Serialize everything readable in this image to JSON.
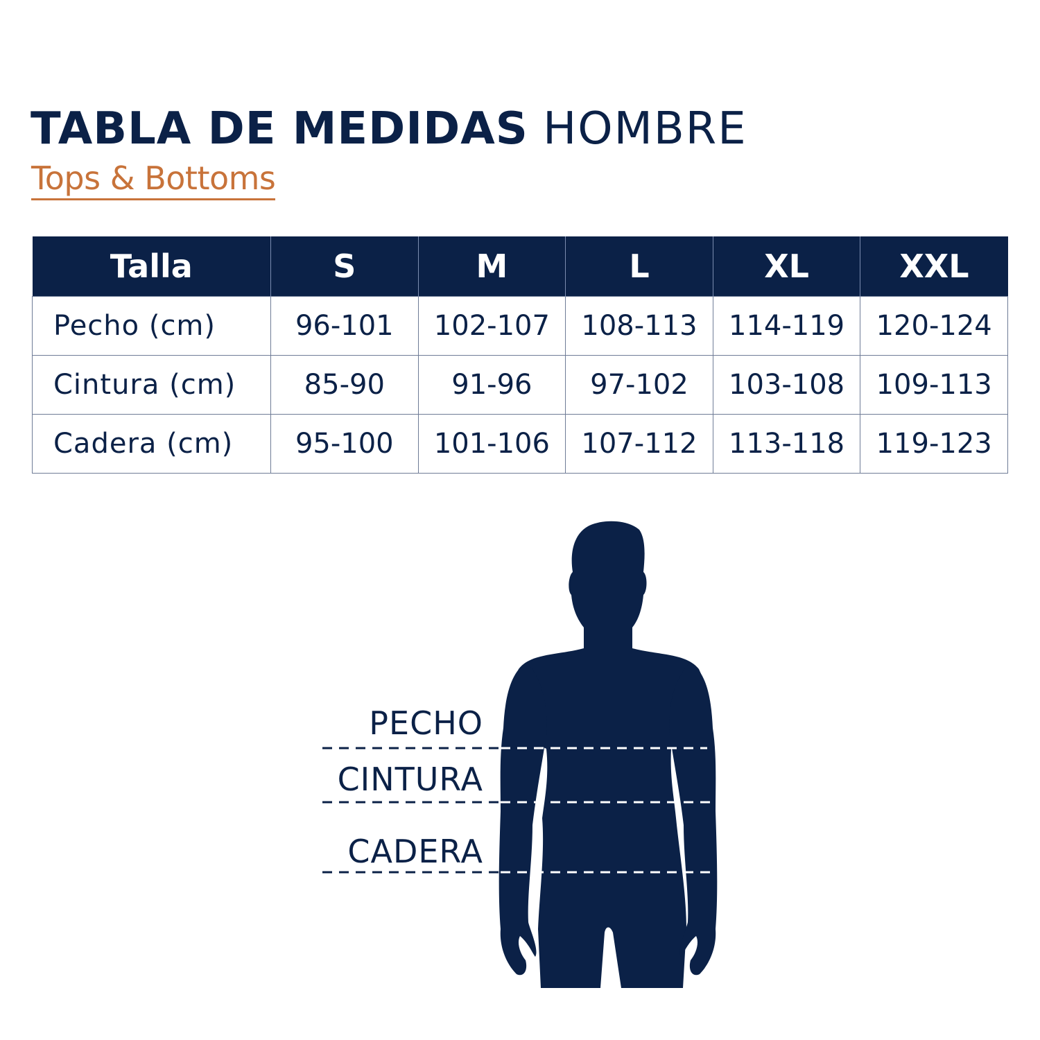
{
  "header": {
    "title_bold": "TABLA DE MEDIDAS",
    "title_light": "HOMBRE",
    "subtitle": "Tops & Bottoms"
  },
  "table": {
    "columns": [
      "Talla",
      "S",
      "M",
      "L",
      "XL",
      "XXL"
    ],
    "rows": [
      {
        "label": "Pecho (cm)",
        "values": [
          "96-101",
          "102-107",
          "108-113",
          "114-119",
          "120-124"
        ]
      },
      {
        "label": "Cintura (cm)",
        "values": [
          "85-90",
          "91-96",
          "97-102",
          "103-108",
          "109-113"
        ]
      },
      {
        "label": "Cadera (cm)",
        "values": [
          "95-100",
          "101-106",
          "107-112",
          "113-118",
          "119-123"
        ]
      }
    ]
  },
  "figure": {
    "labels": {
      "chest": "PECHO",
      "waist": "CINTURA",
      "hip": "CADERA"
    }
  },
  "colors": {
    "navy": "#0b2147",
    "accent": "#c8733a"
  }
}
